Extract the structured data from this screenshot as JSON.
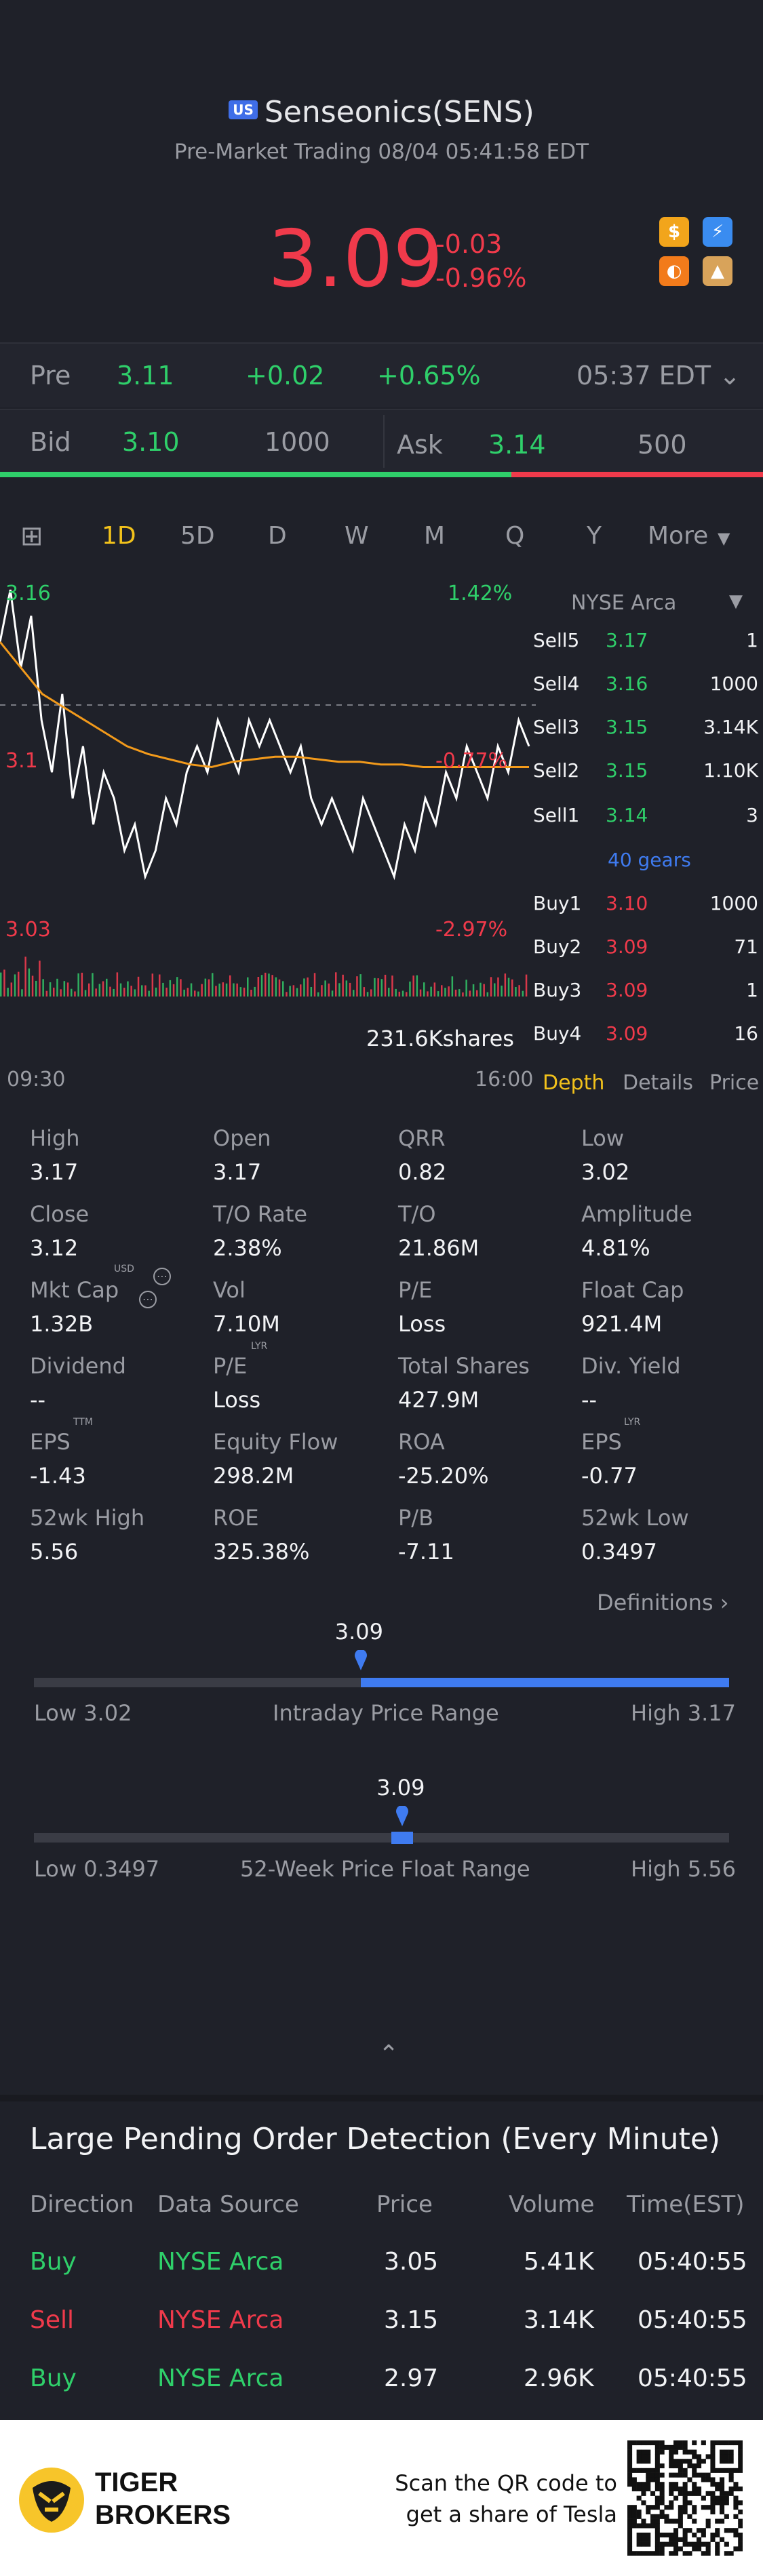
{
  "header": {
    "market_badge": "US",
    "title": "Senseonics(SENS)",
    "subtitle": "Pre-Market Trading 08/04 05:41:58 EDT",
    "price": "3.09",
    "change": "-0.03",
    "change_pct": "-0.96%",
    "icons": [
      "dollar-icon",
      "lightning-icon",
      "options-icon",
      "education-icon"
    ]
  },
  "pre_row": {
    "label": "Pre",
    "price": "3.11",
    "change": "+0.02",
    "change_pct": "+0.65%",
    "time": "05:37 EDT"
  },
  "bid_row": {
    "bid_label": "Bid",
    "bid_price": "3.10",
    "bid_size": "1000",
    "ask_label": "Ask",
    "ask_price": "3.14",
    "ask_size": "500",
    "bid_ratio": 0.67
  },
  "tabs": [
    "1D",
    "5D",
    "D",
    "W",
    "M",
    "Q",
    "Y",
    "More"
  ],
  "active_tab": "1D",
  "chart": {
    "high_label": "3.16",
    "high_pct": "1.42%",
    "mid_label": "3.1",
    "mid_pct": "-0.77%",
    "low_label": "3.03",
    "low_pct": "-2.97%",
    "volume_label": "231.6Kshares",
    "time_start": "09:30",
    "time_end": "16:00"
  },
  "chart_data": {
    "type": "line",
    "ylim": [
      3.03,
      3.16
    ],
    "prev_close": 3.12,
    "series": [
      {
        "values": [
          3.14,
          3.16,
          3.13,
          3.15,
          3.11,
          3.09,
          3.12,
          3.08,
          3.1,
          3.07,
          3.09,
          3.08,
          3.06,
          3.07,
          3.05,
          3.06,
          3.08,
          3.07,
          3.09,
          3.1,
          3.09,
          3.11,
          3.1,
          3.09,
          3.11,
          3.1,
          3.11,
          3.1,
          3.09,
          3.1,
          3.08,
          3.07,
          3.08,
          3.07,
          3.06,
          3.08,
          3.07,
          3.06,
          3.05,
          3.07,
          3.06,
          3.08,
          3.07,
          3.09,
          3.08,
          3.1,
          3.09,
          3.08,
          3.1,
          3.09,
          3.11,
          3.1
        ]
      },
      {
        "values": [
          3.14,
          3.13,
          3.12,
          3.115,
          3.11,
          3.105,
          3.1,
          3.097,
          3.095,
          3.093,
          3.092,
          3.094,
          3.095,
          3.096,
          3.096,
          3.095,
          3.094,
          3.094,
          3.093,
          3.093,
          3.092,
          3.092,
          3.092,
          3.092,
          3.092,
          3.092
        ]
      }
    ]
  },
  "depth": {
    "exchange": "NYSE Arca",
    "sells": [
      {
        "label": "Sell5",
        "price": "3.17",
        "size": "1"
      },
      {
        "label": "Sell4",
        "price": "3.16",
        "size": "1000"
      },
      {
        "label": "Sell3",
        "price": "3.15",
        "size": "3.14K"
      },
      {
        "label": "Sell2",
        "price": "3.15",
        "size": "1.10K"
      },
      {
        "label": "Sell1",
        "price": "3.14",
        "size": "3"
      }
    ],
    "gears": "40 gears",
    "buys": [
      {
        "label": "Buy1",
        "price": "3.10",
        "size": "1000"
      },
      {
        "label": "Buy2",
        "price": "3.09",
        "size": "71"
      },
      {
        "label": "Buy3",
        "price": "3.09",
        "size": "1"
      },
      {
        "label": "Buy4",
        "price": "3.09",
        "size": "16"
      }
    ],
    "tabs": [
      "Depth",
      "Details",
      "Price"
    ]
  },
  "stats": [
    [
      {
        "label": "High",
        "value": "3.17"
      },
      {
        "label": "Open",
        "value": "3.17"
      },
      {
        "label": "QRR",
        "value": "0.82"
      },
      {
        "label": "Low",
        "value": "3.02"
      }
    ],
    [
      {
        "label": "Close",
        "value": "3.12"
      },
      {
        "label": "T/O Rate",
        "value": "2.38%"
      },
      {
        "label": "T/O",
        "value": "21.86M"
      },
      {
        "label": "Amplitude",
        "value": "4.81%"
      }
    ],
    [
      {
        "label": "Mkt Cap",
        "value": "1.32B"
      },
      {
        "label": "Vol",
        "value": "7.10M"
      },
      {
        "label": "P/E",
        "value": "Loss"
      },
      {
        "label": "Float Cap",
        "value": "921.4M"
      }
    ],
    [
      {
        "label": "Dividend",
        "value": "--"
      },
      {
        "label": "P/E",
        "value": "Loss"
      },
      {
        "label": "Total Shares",
        "value": "427.9M"
      },
      {
        "label": "Div. Yield",
        "value": "--"
      }
    ],
    [
      {
        "label": "EPS",
        "value": "-1.43"
      },
      {
        "label": "Equity Flow",
        "value": "298.2M"
      },
      {
        "label": "ROA",
        "value": "-25.20%"
      },
      {
        "label": "EPS",
        "value": "-0.77"
      }
    ],
    [
      {
        "label": "52wk High",
        "value": "5.56"
      },
      {
        "label": "ROE",
        "value": "325.38%"
      },
      {
        "label": "P/B",
        "value": "-7.11"
      },
      {
        "label": "52wk Low",
        "value": "0.3497"
      }
    ]
  ],
  "stat_superscripts": {
    "usd": "USD",
    "lyr": "LYR",
    "ttm": "TTM",
    "lyr2": "LYR"
  },
  "definitions": "Definitions",
  "intraday": {
    "current": "3.09",
    "low": "Low 3.02",
    "title": "Intraday Price Range",
    "high": "High 3.17",
    "position": 0.47
  },
  "week52": {
    "current": "3.09",
    "low": "Low 0.3497",
    "title": "52-Week Price Float Range",
    "high": "High 5.56",
    "position": 0.53
  },
  "pending": {
    "title": "Large Pending Order Detection (Every Minute)",
    "headers": [
      "Direction",
      "Data Source",
      "Price",
      "Volume",
      "Time(EST)"
    ],
    "rows": [
      {
        "direction": "Buy",
        "source": "NYSE Arca",
        "price": "3.05",
        "volume": "5.41K",
        "time": "05:40:55"
      },
      {
        "direction": "Sell",
        "source": "NYSE Arca",
        "price": "3.15",
        "volume": "3.14K",
        "time": "05:40:55"
      },
      {
        "direction": "Buy",
        "source": "NYSE Arca",
        "price": "2.97",
        "volume": "2.96K",
        "time": "05:40:55"
      }
    ]
  },
  "footer": {
    "brand_line1": "TIGER",
    "brand_line2": "BROKERS",
    "scan_line1": "Scan the QR code to",
    "scan_line2": "get a share of Tesla"
  },
  "colors": {
    "green": "#2fcf6a",
    "red": "#f03a4b",
    "accent": "#f2c21b",
    "blue": "#3f7bf0",
    "bg": "#1f2129"
  }
}
